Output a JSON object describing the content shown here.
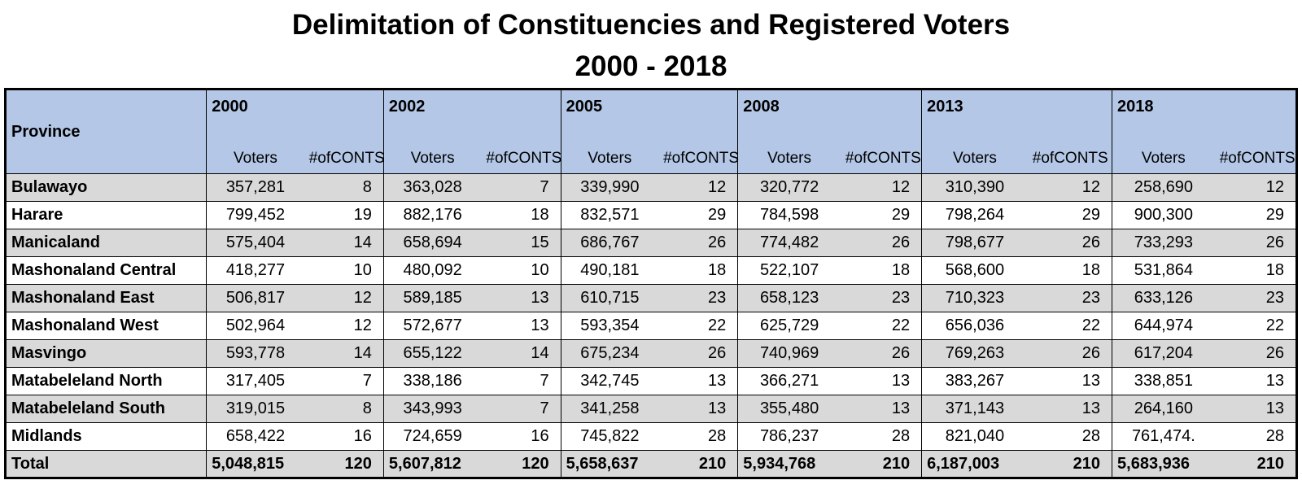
{
  "chart_data": {
    "type": "table",
    "title": "Delimitation of Constituencies and Registered Voters",
    "subtitle": "2000 - 2018",
    "header": {
      "province_label": "Province",
      "voters_label": "Voters",
      "conts_label": "#ofCONTS",
      "years": [
        "2000",
        "2002",
        "2005",
        "2008",
        "2013",
        "2018"
      ]
    },
    "rows": [
      {
        "province": "Bulawayo",
        "cells": [
          [
            "357,281",
            "8"
          ],
          [
            "363,028",
            "7"
          ],
          [
            "339,990",
            "12"
          ],
          [
            "320,772",
            "12"
          ],
          [
            "310,390",
            "12"
          ],
          [
            "258,690",
            "12"
          ]
        ]
      },
      {
        "province": "Harare",
        "cells": [
          [
            "799,452",
            "19"
          ],
          [
            "882,176",
            "18"
          ],
          [
            "832,571",
            "29"
          ],
          [
            "784,598",
            "29"
          ],
          [
            "798,264",
            "29"
          ],
          [
            "900,300",
            "29"
          ]
        ]
      },
      {
        "province": "Manicaland",
        "cells": [
          [
            "575,404",
            "14"
          ],
          [
            "658,694",
            "15"
          ],
          [
            "686,767",
            "26"
          ],
          [
            "774,482",
            "26"
          ],
          [
            "798,677",
            "26"
          ],
          [
            "733,293",
            "26"
          ]
        ]
      },
      {
        "province": "Mashonaland Central",
        "cells": [
          [
            "418,277",
            "10"
          ],
          [
            "480,092",
            "10"
          ],
          [
            "490,181",
            "18"
          ],
          [
            "522,107",
            "18"
          ],
          [
            "568,600",
            "18"
          ],
          [
            "531,864",
            "18"
          ]
        ]
      },
      {
        "province": "Mashonaland East",
        "cells": [
          [
            "506,817",
            "12"
          ],
          [
            "589,185",
            "13"
          ],
          [
            "610,715",
            "23"
          ],
          [
            "658,123",
            "23"
          ],
          [
            "710,323",
            "23"
          ],
          [
            "633,126",
            "23"
          ]
        ]
      },
      {
        "province": "Mashonaland West",
        "cells": [
          [
            "502,964",
            "12"
          ],
          [
            "572,677",
            "13"
          ],
          [
            "593,354",
            "22"
          ],
          [
            "625,729",
            "22"
          ],
          [
            "656,036",
            "22"
          ],
          [
            "644,974",
            "22"
          ]
        ]
      },
      {
        "province": "Masvingo",
        "cells": [
          [
            "593,778",
            "14"
          ],
          [
            "655,122",
            "14"
          ],
          [
            "675,234",
            "26"
          ],
          [
            "740,969",
            "26"
          ],
          [
            "769,263",
            "26"
          ],
          [
            "617,204",
            "26"
          ]
        ]
      },
      {
        "province": "Matabeleland North",
        "cells": [
          [
            "317,405",
            "7"
          ],
          [
            "338,186",
            "7"
          ],
          [
            "342,745",
            "13"
          ],
          [
            "366,271",
            "13"
          ],
          [
            "383,267",
            "13"
          ],
          [
            "338,851",
            "13"
          ]
        ]
      },
      {
        "province": "Matabeleland South",
        "cells": [
          [
            "319,015",
            "8"
          ],
          [
            "343,993",
            "7"
          ],
          [
            "341,258",
            "13"
          ],
          [
            "355,480",
            "13"
          ],
          [
            "371,143",
            "13"
          ],
          [
            "264,160",
            "13"
          ]
        ]
      },
      {
        "province": "Midlands",
        "cells": [
          [
            "658,422",
            "16"
          ],
          [
            "724,659",
            "16"
          ],
          [
            "745,822",
            "28"
          ],
          [
            "786,237",
            "28"
          ],
          [
            "821,040",
            "28"
          ],
          [
            "761,474.",
            "28"
          ]
        ]
      },
      {
        "province": "Total",
        "cells": [
          [
            "5,048,815",
            "120"
          ],
          [
            "5,607,812",
            "120"
          ],
          [
            "5,658,637",
            "210"
          ],
          [
            "5,934,768",
            "210"
          ],
          [
            "6,187,003",
            "210"
          ],
          [
            "5,683,936",
            "210"
          ]
        ]
      }
    ]
  }
}
